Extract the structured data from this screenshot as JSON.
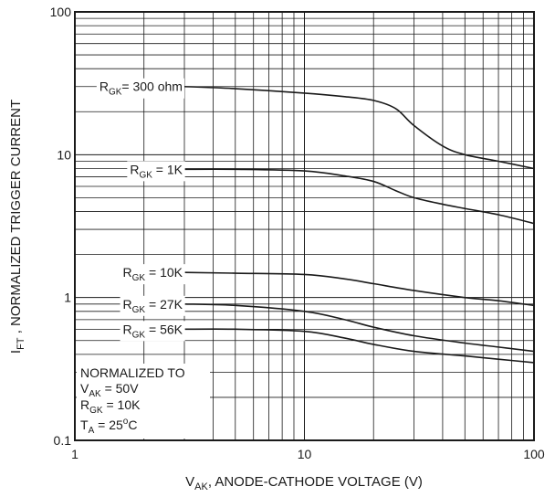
{
  "chart_data": {
    "type": "line",
    "xlabel": "V_AK, ANODE-CATHODE VOLTAGE (V)",
    "xlabel_parts": {
      "base": "V",
      "sub": "AK",
      "rest": ", ANODE-CATHODE VOLTAGE (V)"
    },
    "ylabel": "I_FT , NORMALIZED TRIGGER CURRENT",
    "ylabel_parts": {
      "base": "I",
      "sub": "FT",
      "rest": " , NORMALIZED TRIGGER CURRENT"
    },
    "x_scale": "log",
    "y_scale": "log",
    "xlim": [
      1,
      100
    ],
    "ylim": [
      0.1,
      100
    ],
    "x_ticks": [
      {
        "value": 1,
        "label": "1"
      },
      {
        "value": 10,
        "label": "10"
      },
      {
        "value": 100,
        "label": "100"
      }
    ],
    "y_ticks": [
      {
        "value": 0.1,
        "label": "0.1"
      },
      {
        "value": 1,
        "label": "1"
      },
      {
        "value": 10,
        "label": "10"
      },
      {
        "value": 100,
        "label": "100"
      }
    ],
    "grid": true,
    "series": [
      {
        "name": "R_GK = 300 ohm",
        "label_parts": {
          "base": "R",
          "sub": "GK",
          "rest": "= 300 ohm"
        },
        "x": [
          3,
          5,
          10,
          15,
          20,
          25,
          30,
          40,
          50,
          70,
          100
        ],
        "y": [
          30,
          29,
          27,
          25.5,
          24,
          21,
          16,
          11.5,
          10,
          9,
          8
        ]
      },
      {
        "name": "R_GK = 1K",
        "label_parts": {
          "base": "R",
          "sub": "GK",
          "rest": " = 1K"
        },
        "x": [
          3,
          5,
          10,
          15,
          20,
          25,
          30,
          40,
          50,
          70,
          100
        ],
        "y": [
          7.9,
          7.9,
          7.7,
          7.1,
          6.5,
          5.6,
          5.0,
          4.5,
          4.2,
          3.8,
          3.3
        ]
      },
      {
        "name": "R_GK = 10K",
        "label_parts": {
          "base": "R",
          "sub": "GK",
          "rest": " = 10K"
        },
        "x": [
          3,
          5,
          10,
          15,
          20,
          30,
          50,
          70,
          100
        ],
        "y": [
          1.5,
          1.48,
          1.45,
          1.35,
          1.25,
          1.12,
          1.0,
          0.95,
          0.88
        ]
      },
      {
        "name": "R_GK = 27K",
        "label_parts": {
          "base": "R",
          "sub": "GK",
          "rest": " = 27K"
        },
        "x": [
          3,
          5,
          10,
          15,
          20,
          30,
          50,
          70,
          100
        ],
        "y": [
          0.9,
          0.88,
          0.8,
          0.7,
          0.62,
          0.54,
          0.48,
          0.45,
          0.42
        ]
      },
      {
        "name": "R_GK = 56K",
        "label_parts": {
          "base": "R",
          "sub": "GK",
          "rest": " = 56K"
        },
        "x": [
          3,
          5,
          10,
          15,
          20,
          30,
          50,
          70,
          100
        ],
        "y": [
          0.6,
          0.6,
          0.58,
          0.52,
          0.47,
          0.42,
          0.39,
          0.37,
          0.35
        ]
      }
    ],
    "annotation": {
      "line1": "NORMALIZED TO",
      "line2": {
        "base": "V",
        "sub": "AK",
        "rest": " = 50V"
      },
      "line3": {
        "base": "R",
        "sub": "GK",
        "rest": " = 10K"
      },
      "line4": {
        "base": "T",
        "sub": "A",
        "rest": " = 25",
        "sup": "o",
        "rest2": "C"
      }
    }
  }
}
